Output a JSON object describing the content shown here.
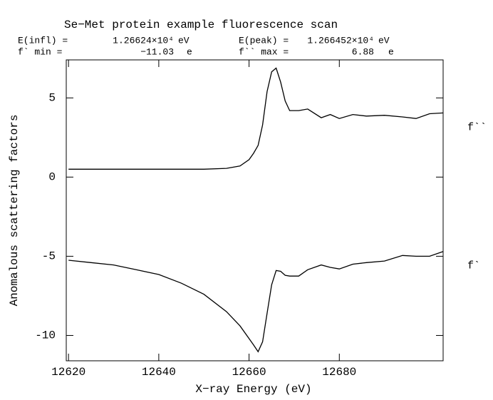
{
  "chart_data": {
    "type": "line",
    "title": "Se−Met protein example fluorescence scan",
    "stats": [
      {
        "label": "E(infl) =",
        "value": "1.26624×10⁴",
        "unit": "eV"
      },
      {
        "label": "E(peak) =",
        "value": "1.266452×10⁴",
        "unit": "eV"
      },
      {
        "label": "f` min =",
        "value": "−11.03",
        "unit": "e"
      },
      {
        "label": "f`` max =",
        "value": "6.88",
        "unit": "e"
      }
    ],
    "x_label": "X−ray Energy (eV)",
    "y_label": "Anomalous scattering factors",
    "x": [
      12620,
      12625,
      12630,
      12635,
      12640,
      12645,
      12650,
      12655,
      12658,
      12660,
      12661,
      12662,
      12663,
      12664,
      12665,
      12666,
      12667,
      12668,
      12669,
      12671,
      12673,
      12676,
      12678,
      12680,
      12683,
      12686,
      12690,
      12694,
      12697,
      12700,
      12703
    ],
    "series": [
      {
        "name": "f``",
        "color": "#000000",
        "values": [
          0.5,
          0.5,
          0.5,
          0.5,
          0.5,
          0.5,
          0.5,
          0.55,
          0.7,
          1.1,
          1.5,
          2.0,
          3.3,
          5.4,
          6.65,
          6.88,
          6.0,
          4.8,
          4.2,
          4.2,
          4.3,
          3.75,
          3.95,
          3.7,
          3.95,
          3.85,
          3.9,
          3.8,
          3.7,
          4.0,
          4.05
        ]
      },
      {
        "name": "f`",
        "color": "#000000",
        "values": [
          -5.25,
          -5.4,
          -5.55,
          -5.85,
          -6.15,
          -6.7,
          -7.4,
          -8.5,
          -9.4,
          -10.2,
          -10.6,
          -11.03,
          -10.4,
          -8.6,
          -6.8,
          -5.9,
          -5.95,
          -6.2,
          -6.25,
          -6.25,
          -5.85,
          -5.55,
          -5.7,
          -5.8,
          -5.5,
          -5.4,
          -5.3,
          -4.95,
          -5.0,
          -5.0,
          -4.7
        ]
      }
    ],
    "xlim": [
      12619.5,
      12703
    ],
    "ylim": [
      -11.6,
      7.4
    ],
    "xticks": [
      12620,
      12640,
      12660,
      12680
    ],
    "yticks": [
      -10,
      -5,
      0,
      5
    ],
    "grid": false
  }
}
